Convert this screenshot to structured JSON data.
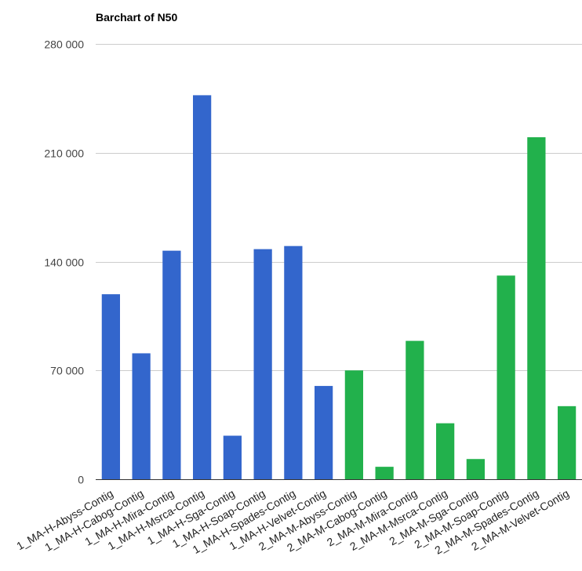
{
  "chart_data": {
    "type": "bar",
    "title": "Barchart of N50",
    "xlabel": "",
    "ylabel": "",
    "ylim": [
      0,
      280000
    ],
    "y_ticks": [
      0,
      70000,
      140000,
      210000,
      280000
    ],
    "y_tick_labels": [
      "0",
      "70 000",
      "140 000",
      "210 000",
      "280 000"
    ],
    "grid": true,
    "legend": "none",
    "categories": [
      "1_MA-H-Abyss-Contig",
      "1_MA-H-Cabog-Contig",
      "1_MA-H-Mira-Contig",
      "1_MA-H-Msrca-Contig",
      "1_MA-H-Sga-Contig",
      "1_MA-H-Soap-Contig",
      "1_MA-H-Spades-Contig",
      "1_MA-H-Velvet-Contig",
      "2_MA-M-Abyss-Contig",
      "2_MA-M-Cabog-Contig",
      "2_MA-M-Mira-Contig",
      "2_MA-M-Msrca-Contig",
      "2_MA-M-Sga-Contig",
      "2_MA-M-Soap-Contig",
      "2_MA-M-Spades-Contig",
      "2_MA-M-Velvet-Contig"
    ],
    "values": [
      119000,
      81000,
      147000,
      247000,
      28000,
      148000,
      150000,
      60000,
      70000,
      8000,
      89000,
      36000,
      13000,
      131000,
      220000,
      47000
    ],
    "bar_colors": [
      "#3366cc",
      "#3366cc",
      "#3366cc",
      "#3366cc",
      "#3366cc",
      "#3366cc",
      "#3366cc",
      "#3366cc",
      "#22b14c",
      "#22b14c",
      "#22b14c",
      "#22b14c",
      "#22b14c",
      "#22b14c",
      "#22b14c",
      "#22b14c"
    ],
    "colors": {
      "series_1": "#3366cc",
      "series_2": "#22b14c",
      "gridline": "#cccccc",
      "baseline": "#333333",
      "tick_label": "#444444",
      "title": "#000000"
    }
  }
}
